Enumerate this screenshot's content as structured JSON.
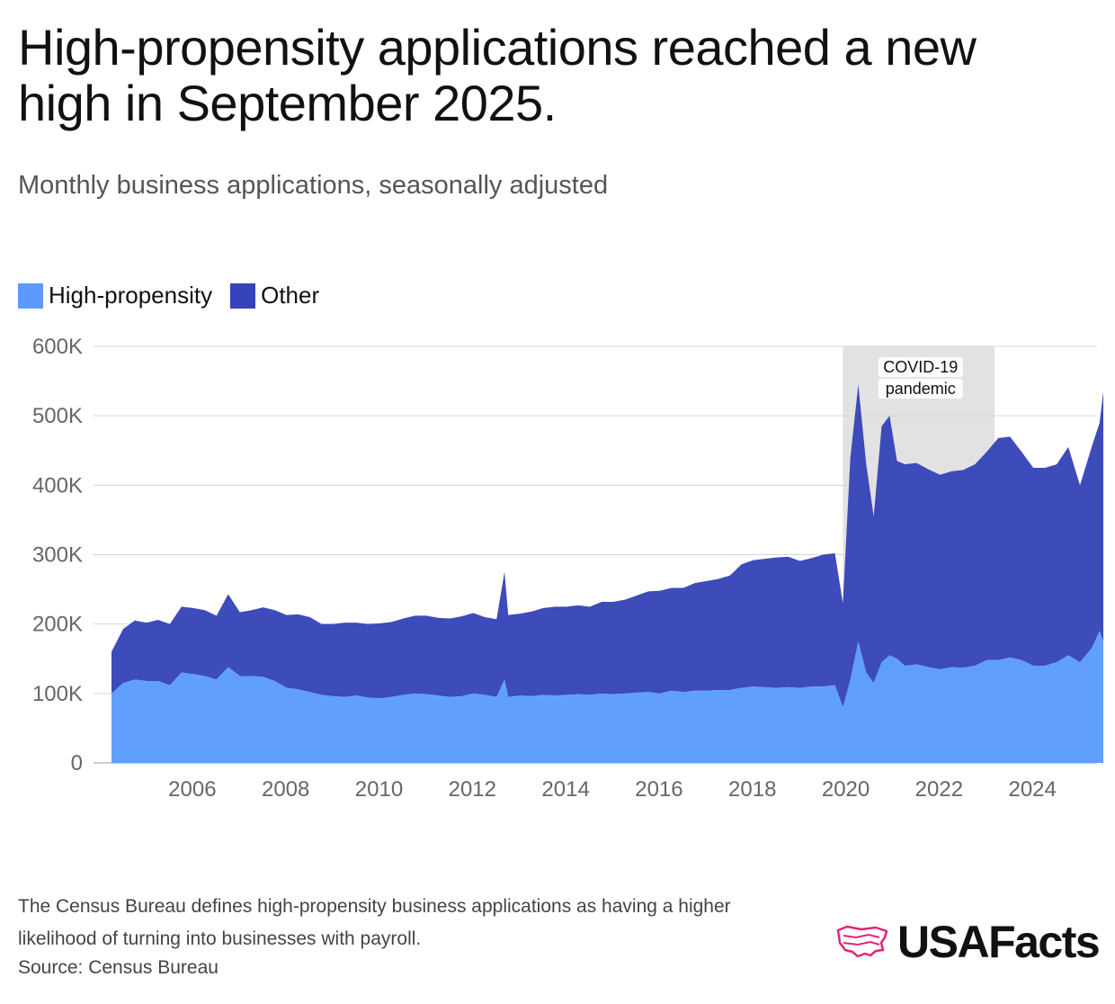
{
  "header": {
    "title": "High-propensity applications reached a new high in September 2025.",
    "subtitle": "Monthly business applications, seasonally adjusted"
  },
  "legend": {
    "items": [
      {
        "label": "High-propensity",
        "color": "#5b9bff"
      },
      {
        "label": "Other",
        "color": "#3544b8"
      }
    ]
  },
  "colors": {
    "high_propensity": "#5b9bff",
    "other": "#3544b8",
    "shade": "#e2e2e2",
    "grid": "#d6d6d6",
    "brand": "#e0247a"
  },
  "chart_data": {
    "type": "area",
    "stacked": true,
    "grid": true,
    "legend_placement": "top-left",
    "x_ticks": [
      "2006",
      "2008",
      "2010",
      "2012",
      "2014",
      "2016",
      "2018",
      "2020",
      "2022",
      "2024"
    ],
    "y_ticks": [
      "0",
      "100K",
      "200K",
      "300K",
      "400K",
      "500K",
      "600K"
    ],
    "xlim": [
      2004.5,
      2026.0
    ],
    "ylim": [
      0,
      600000
    ],
    "annotation": {
      "label_lines": [
        "COVID-19",
        "pandemic"
      ],
      "x_start": 2020.17,
      "x_end": 2023.42
    },
    "series": [
      {
        "name": "High-propensity",
        "x": [
          2004.5,
          2004.75,
          2005.0,
          2005.25,
          2005.5,
          2005.75,
          2006.0,
          2006.25,
          2006.5,
          2006.75,
          2007.0,
          2007.25,
          2007.5,
          2007.75,
          2008.0,
          2008.25,
          2008.5,
          2008.75,
          2009.0,
          2009.25,
          2009.5,
          2009.75,
          2010.0,
          2010.25,
          2010.5,
          2010.75,
          2011.0,
          2011.25,
          2011.5,
          2011.75,
          2012.0,
          2012.25,
          2012.5,
          2012.75,
          2012.92,
          2013.0,
          2013.25,
          2013.5,
          2013.75,
          2014.0,
          2014.25,
          2014.5,
          2014.75,
          2015.0,
          2015.25,
          2015.5,
          2015.75,
          2016.0,
          2016.25,
          2016.5,
          2016.75,
          2017.0,
          2017.25,
          2017.5,
          2017.75,
          2018.0,
          2018.25,
          2018.5,
          2018.75,
          2019.0,
          2019.25,
          2019.5,
          2019.75,
          2020.0,
          2020.17,
          2020.33,
          2020.5,
          2020.67,
          2020.83,
          2021.0,
          2021.17,
          2021.33,
          2021.5,
          2021.75,
          2022.0,
          2022.25,
          2022.5,
          2022.75,
          2023.0,
          2023.25,
          2023.5,
          2023.75,
          2024.0,
          2024.25,
          2024.5,
          2024.75,
          2025.0,
          2025.25,
          2025.5,
          2025.67,
          2025.75
        ],
        "values": [
          100000,
          115000,
          120000,
          118000,
          118000,
          112000,
          130000,
          128000,
          125000,
          120000,
          138000,
          125000,
          125000,
          124000,
          118000,
          108000,
          106000,
          102000,
          98000,
          96000,
          95000,
          97000,
          94000,
          93000,
          95000,
          98000,
          100000,
          99000,
          97000,
          95000,
          96000,
          100000,
          98000,
          95000,
          120000,
          95000,
          97000,
          96000,
          98000,
          97000,
          98000,
          99000,
          98000,
          100000,
          99000,
          100000,
          101000,
          102000,
          100000,
          104000,
          102000,
          104000,
          104000,
          105000,
          105000,
          108000,
          110000,
          109000,
          108000,
          109000,
          108000,
          110000,
          110000,
          112000,
          80000,
          120000,
          175000,
          130000,
          115000,
          145000,
          155000,
          150000,
          140000,
          142000,
          138000,
          135000,
          138000,
          137000,
          140000,
          148000,
          148000,
          152000,
          148000,
          140000,
          140000,
          145000,
          155000,
          145000,
          165000,
          190000,
          175000
        ]
      },
      {
        "name": "Other",
        "x": [
          2004.5,
          2004.75,
          2005.0,
          2005.25,
          2005.5,
          2005.75,
          2006.0,
          2006.25,
          2006.5,
          2006.75,
          2007.0,
          2007.25,
          2007.5,
          2007.75,
          2008.0,
          2008.25,
          2008.5,
          2008.75,
          2009.0,
          2009.25,
          2009.5,
          2009.75,
          2010.0,
          2010.25,
          2010.5,
          2010.75,
          2011.0,
          2011.25,
          2011.5,
          2011.75,
          2012.0,
          2012.25,
          2012.5,
          2012.75,
          2012.92,
          2013.0,
          2013.25,
          2013.5,
          2013.75,
          2014.0,
          2014.25,
          2014.5,
          2014.75,
          2015.0,
          2015.25,
          2015.5,
          2015.75,
          2016.0,
          2016.25,
          2016.5,
          2016.75,
          2017.0,
          2017.25,
          2017.5,
          2017.75,
          2018.0,
          2018.25,
          2018.5,
          2018.75,
          2019.0,
          2019.25,
          2019.5,
          2019.75,
          2020.0,
          2020.17,
          2020.33,
          2020.5,
          2020.67,
          2020.83,
          2021.0,
          2021.17,
          2021.33,
          2021.5,
          2021.75,
          2022.0,
          2022.25,
          2022.5,
          2022.75,
          2023.0,
          2023.25,
          2023.5,
          2023.75,
          2024.0,
          2024.25,
          2024.5,
          2024.75,
          2025.0,
          2025.25,
          2025.5,
          2025.67,
          2025.75
        ],
        "values": [
          60000,
          78000,
          85000,
          84000,
          88000,
          88000,
          95000,
          95000,
          95000,
          92000,
          105000,
          92000,
          95000,
          100000,
          102000,
          105000,
          108000,
          108000,
          102000,
          104000,
          107000,
          105000,
          106000,
          108000,
          108000,
          110000,
          112000,
          113000,
          112000,
          113000,
          115000,
          116000,
          112000,
          112000,
          155000,
          118000,
          118000,
          122000,
          125000,
          128000,
          127000,
          128000,
          127000,
          132000,
          133000,
          135000,
          140000,
          145000,
          148000,
          148000,
          150000,
          155000,
          158000,
          160000,
          165000,
          178000,
          182000,
          185000,
          188000,
          188000,
          183000,
          185000,
          190000,
          190000,
          150000,
          320000,
          370000,
          300000,
          240000,
          340000,
          345000,
          285000,
          290000,
          290000,
          285000,
          280000,
          282000,
          285000,
          290000,
          300000,
          320000,
          318000,
          300000,
          285000,
          285000,
          285000,
          300000,
          255000,
          290000,
          300000,
          360000
        ]
      }
    ]
  },
  "footer": {
    "note": "The Census Bureau defines high-propensity business applications as having a higher likelihood of turning into businesses with payroll.",
    "source": "Source: Census Bureau",
    "logo_text": "USAFacts"
  }
}
